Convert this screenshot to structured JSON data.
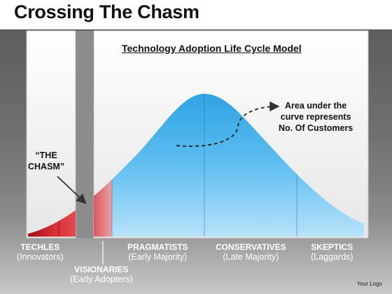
{
  "slide": {
    "title": "Crossing The Chasm",
    "footer": "Your Logo"
  },
  "diagram": {
    "title": "Technology Adoption Life Cycle Model",
    "annotation": {
      "line1": "Area under the",
      "line2": "curve represents",
      "line3": "No. Of Customers"
    },
    "chasm_label": {
      "line1": "“THE",
      "line2": "CHASM”"
    },
    "segments": [
      {
        "name": "TECHLES",
        "subtitle": "(Innovators)"
      },
      {
        "name": "VISIONARIES",
        "subtitle": "(Early Adopters)"
      },
      {
        "name": "PRAGMATISTS",
        "subtitle": "(Early Majority)"
      },
      {
        "name": "CONSERVATIVES",
        "subtitle": "(Late Majority)"
      },
      {
        "name": "SKEPTICS",
        "subtitle": "(Laggards)"
      }
    ],
    "colors": {
      "early_segments": "#c8202a",
      "majority_segments": "#3aaae8",
      "chasm_gap": "#8c8c8c",
      "panel": "#f4f4f4"
    }
  }
}
